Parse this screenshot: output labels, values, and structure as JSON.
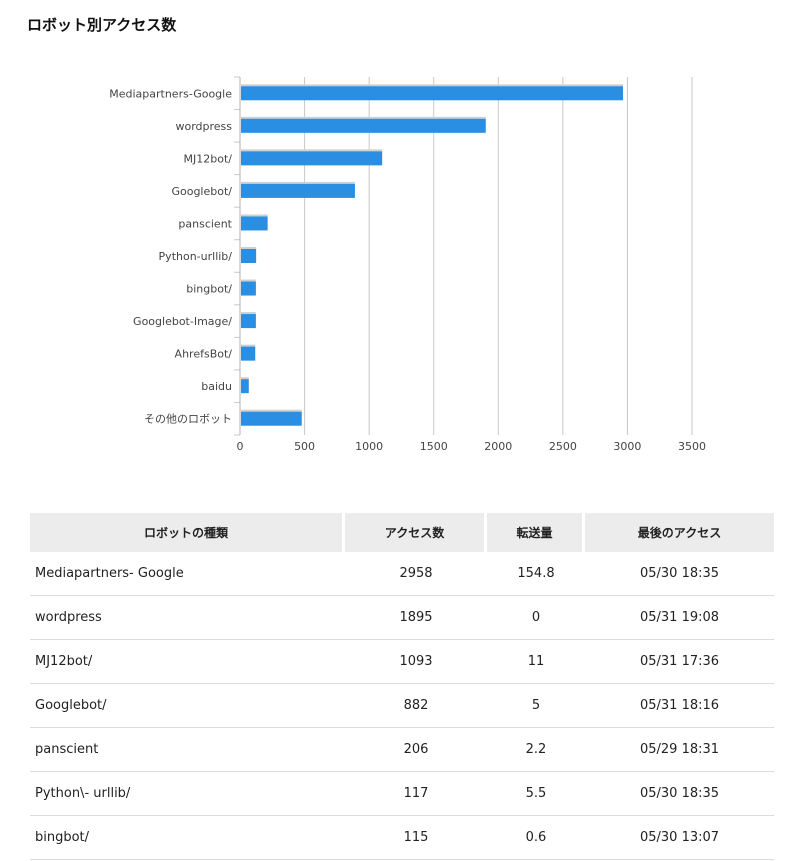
{
  "page": {
    "title": "ロボット別アクセス数"
  },
  "chart_data": {
    "type": "bar",
    "orientation": "horizontal",
    "categories": [
      "Mediapartners-Google",
      "wordpress",
      "MJ12bot/",
      "Googlebot/",
      "panscient",
      "Python-urllib/",
      "bingbot/",
      "Googlebot-Image/",
      "AhrefsBot/",
      "baidu",
      "その他のロボット"
    ],
    "values": [
      2958,
      1895,
      1093,
      882,
      206,
      117,
      115,
      115,
      110,
      60,
      470
    ],
    "xticks": [
      "0",
      "500",
      "1000",
      "1500",
      "2000",
      "2500",
      "3000",
      "3500"
    ],
    "xlim": [
      0,
      3500
    ],
    "grid": true,
    "bar_color": "#2a8ee2"
  },
  "table": {
    "headers": [
      "ロボットの種類",
      "アクセス数",
      "転送量",
      "最後のアクセス"
    ],
    "rows": [
      [
        "Mediapartners- Google",
        "2958",
        "154.8",
        "05/30 18:35"
      ],
      [
        "wordpress",
        "1895",
        "0",
        "05/31 19:08"
      ],
      [
        "MJ12bot/",
        "1093",
        "11",
        "05/31 17:36"
      ],
      [
        "Googlebot/",
        "882",
        "5",
        "05/31 18:16"
      ],
      [
        "panscient",
        "206",
        "2.2",
        "05/29 18:31"
      ],
      [
        "Python\\- urllib/",
        "117",
        "5.5",
        "05/30 18:35"
      ],
      [
        "bingbot/",
        "115",
        "0.6",
        "05/30 13:07"
      ]
    ]
  }
}
